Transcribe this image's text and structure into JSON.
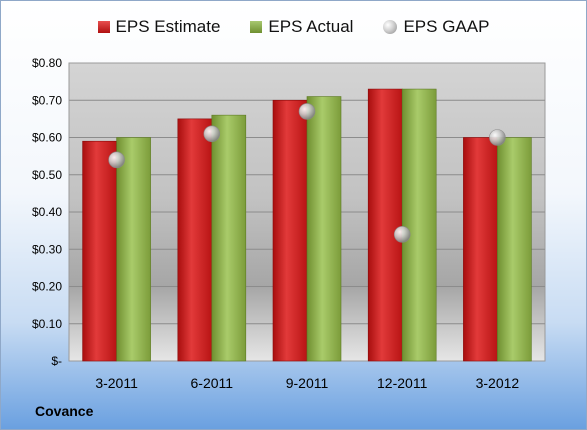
{
  "chart_data": {
    "type": "bar",
    "categories": [
      "3-2011",
      "6-2011",
      "9-2011",
      "12-2011",
      "3-2012"
    ],
    "series": [
      {
        "name": "EPS Estimate",
        "values": [
          0.59,
          0.65,
          0.7,
          0.73,
          0.6
        ],
        "color": "#c81e1e"
      },
      {
        "name": "EPS Actual",
        "values": [
          0.6,
          0.66,
          0.71,
          0.73,
          0.6
        ],
        "color": "#8cb048"
      },
      {
        "name": "EPS GAAP",
        "values": [
          0.54,
          0.61,
          0.67,
          0.34,
          0.6
        ],
        "color": "#b8b8b8",
        "marker": "circle"
      }
    ],
    "ylim": [
      0,
      0.8
    ],
    "yticks": [
      0,
      0.1,
      0.2,
      0.3,
      0.4,
      0.5,
      0.6,
      0.7,
      0.8
    ],
    "ytick_labels": [
      "$-",
      "$0.10",
      "$0.20",
      "$0.30",
      "$0.40",
      "$0.50",
      "$0.60",
      "$0.70",
      "$0.80"
    ],
    "grid": true,
    "legend_position": "top"
  },
  "company": "Covance"
}
